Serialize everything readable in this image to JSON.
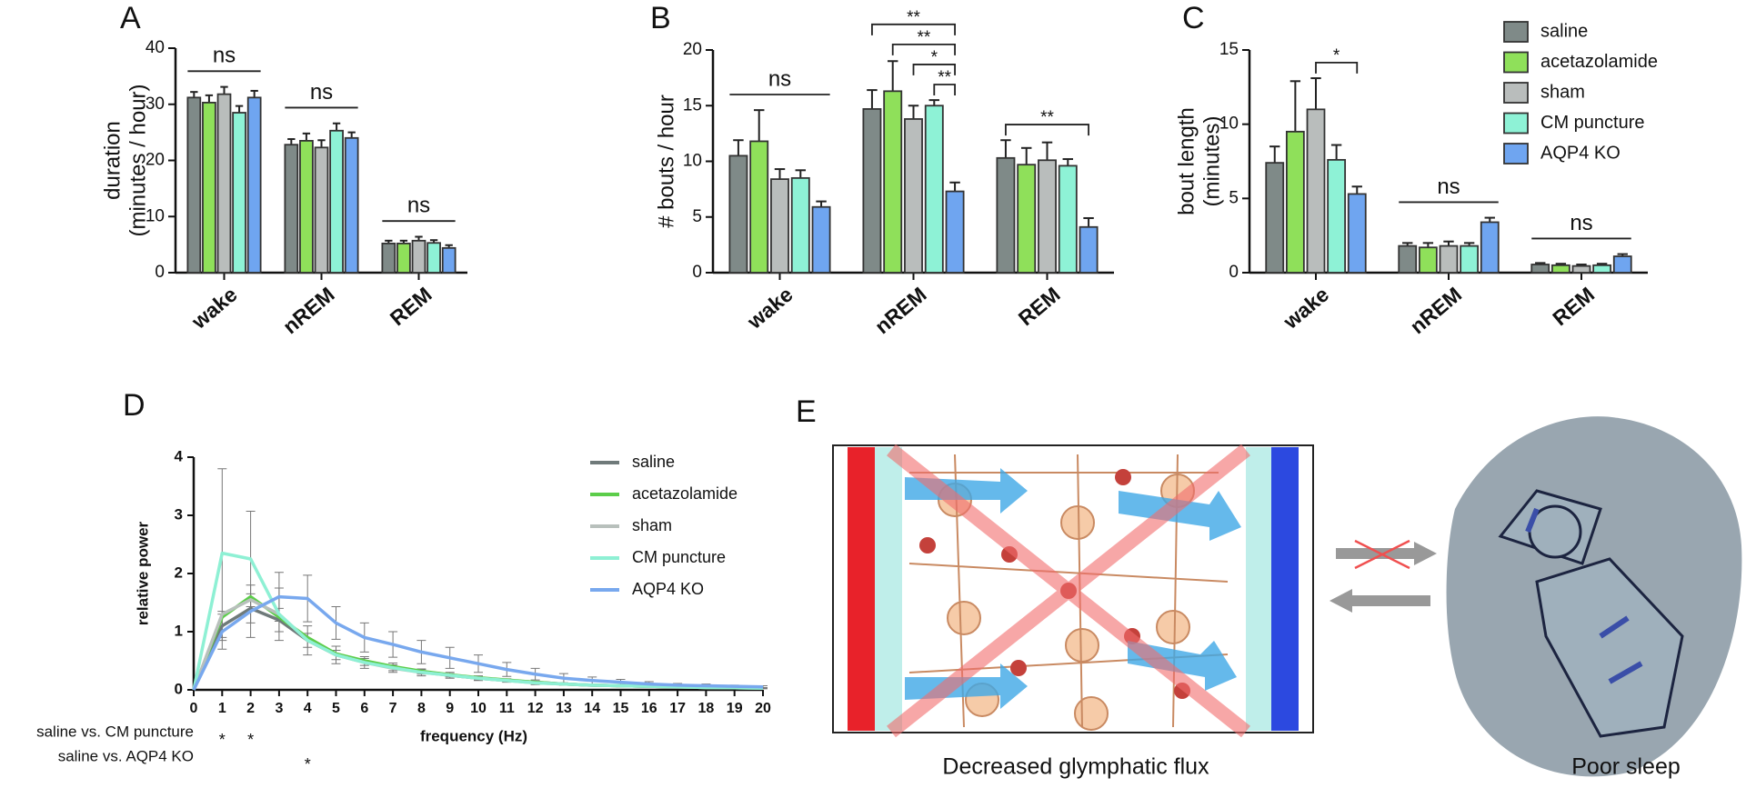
{
  "chart_data": [
    {
      "type": "bar",
      "panel": "A",
      "ylabel": [
        "duration",
        "(minutes / hour)"
      ],
      "categories": [
        "wake",
        "nREM",
        "REM"
      ],
      "ylim": [
        0,
        40
      ],
      "yticks": [
        0,
        10,
        20,
        30,
        40
      ],
      "series": [
        {
          "name": "saline",
          "color": "#7f8a88",
          "values": [
            31.2,
            22.8,
            5.2
          ],
          "errors": [
            1.0,
            1.0,
            0.5
          ]
        },
        {
          "name": "acetazolamide",
          "color": "#8fe05a",
          "values": [
            30.3,
            23.5,
            5.2
          ],
          "errors": [
            1.3,
            1.3,
            0.5
          ]
        },
        {
          "name": "sham",
          "color": "#b9bdbc",
          "values": [
            31.8,
            22.3,
            5.7
          ],
          "errors": [
            1.3,
            1.3,
            0.7
          ]
        },
        {
          "name": "CM puncture",
          "color": "#8ef2d6",
          "values": [
            28.5,
            25.3,
            5.3
          ],
          "errors": [
            1.2,
            1.3,
            0.5
          ]
        },
        {
          "name": "AQP4 KO",
          "color": "#6fa5f0",
          "values": [
            31.2,
            24.0,
            4.4
          ],
          "errors": [
            1.2,
            1.0,
            0.5
          ]
        }
      ],
      "annotations": [
        {
          "text": "ns",
          "group": 0,
          "bars": [
            0,
            4
          ],
          "bracket": false
        },
        {
          "text": "ns",
          "group": 1,
          "bars": [
            0,
            4
          ],
          "bracket": false
        },
        {
          "text": "ns",
          "group": 2,
          "bars": [
            0,
            4
          ],
          "bracket": false
        }
      ]
    },
    {
      "type": "bar",
      "panel": "B",
      "ylabel": [
        "# bouts / hour"
      ],
      "categories": [
        "wake",
        "nREM",
        "REM"
      ],
      "ylim": [
        0,
        20
      ],
      "yticks": [
        0,
        5,
        10,
        15,
        20
      ],
      "series": [
        {
          "name": "saline",
          "color": "#7f8a88",
          "values": [
            10.5,
            14.7,
            10.3
          ],
          "errors": [
            1.4,
            1.7,
            1.6
          ]
        },
        {
          "name": "acetazolamide",
          "color": "#8fe05a",
          "values": [
            11.8,
            16.3,
            9.7
          ],
          "errors": [
            2.8,
            2.7,
            1.5
          ]
        },
        {
          "name": "sham",
          "color": "#b9bdbc",
          "values": [
            8.4,
            13.8,
            10.1
          ],
          "errors": [
            0.9,
            1.2,
            1.6
          ]
        },
        {
          "name": "CM puncture",
          "color": "#8ef2d6",
          "values": [
            8.5,
            15.0,
            9.6
          ],
          "errors": [
            0.7,
            0.5,
            0.6
          ]
        },
        {
          "name": "AQP4 KO",
          "color": "#6fa5f0",
          "values": [
            5.9,
            7.3,
            4.1
          ],
          "errors": [
            0.5,
            0.8,
            0.8
          ]
        }
      ],
      "annotations": [
        {
          "text": "ns",
          "group": 0,
          "bars": [
            0,
            4
          ],
          "bracket": false
        },
        {
          "text": "**",
          "group": 1,
          "bars": [
            3,
            4
          ],
          "bracket": true
        },
        {
          "text": "*",
          "group": 1,
          "bars": [
            2,
            4
          ],
          "bracket": true
        },
        {
          "text": "**",
          "group": 1,
          "bars": [
            1,
            4
          ],
          "bracket": true
        },
        {
          "text": "**",
          "group": 1,
          "bars": [
            0,
            4
          ],
          "bracket": true
        },
        {
          "text": "**",
          "group": 2,
          "bars": [
            0,
            4
          ],
          "bracket": true
        }
      ]
    },
    {
      "type": "bar",
      "panel": "C",
      "ylabel": [
        "bout length",
        "(minutes)"
      ],
      "categories": [
        "wake",
        "nREM",
        "REM"
      ],
      "ylim": [
        0,
        15
      ],
      "yticks": [
        0,
        5,
        10,
        15
      ],
      "legend": "upper right",
      "series": [
        {
          "name": "saline",
          "color": "#7f8a88",
          "values": [
            7.4,
            1.8,
            0.55
          ],
          "errors": [
            1.1,
            0.2,
            0.1
          ]
        },
        {
          "name": "acetazolamide",
          "color": "#8fe05a",
          "values": [
            9.5,
            1.7,
            0.5
          ],
          "errors": [
            3.4,
            0.3,
            0.1
          ]
        },
        {
          "name": "sham",
          "color": "#b9bdbc",
          "values": [
            11.0,
            1.8,
            0.45
          ],
          "errors": [
            2.1,
            0.3,
            0.1
          ]
        },
        {
          "name": "CM puncture",
          "color": "#8ef2d6",
          "values": [
            7.6,
            1.8,
            0.5
          ],
          "errors": [
            1.0,
            0.2,
            0.1
          ]
        },
        {
          "name": "AQP4 KO",
          "color": "#6fa5f0",
          "values": [
            5.3,
            3.4,
            1.1
          ],
          "errors": [
            0.5,
            0.3,
            0.15
          ]
        }
      ],
      "annotations": [
        {
          "text": "*",
          "group": 0,
          "bars": [
            2,
            4
          ],
          "bracket": true
        },
        {
          "text": "ns",
          "group": 1,
          "bars": [
            0,
            4
          ],
          "bracket": false
        },
        {
          "text": "ns",
          "group": 2,
          "bars": [
            0,
            4
          ],
          "bracket": false
        }
      ]
    },
    {
      "type": "line",
      "panel": "D",
      "xlabel": "frequency (Hz)",
      "ylabel": "relative power",
      "x": [
        0,
        1,
        2,
        3,
        4,
        5,
        6,
        7,
        8,
        9,
        10,
        11,
        12,
        13,
        14,
        15,
        16,
        17,
        18,
        19,
        20
      ],
      "xlim": [
        0,
        20
      ],
      "xticks": [
        0,
        1,
        2,
        3,
        4,
        5,
        6,
        7,
        8,
        9,
        10,
        11,
        12,
        13,
        14,
        15,
        16,
        17,
        18,
        19,
        20
      ],
      "ylim": [
        0,
        4
      ],
      "yticks": [
        0,
        1,
        2,
        3,
        4
      ],
      "legend": "upper right",
      "series": [
        {
          "name": "saline",
          "color": "#6f7a7a",
          "values": [
            0,
            1.1,
            1.4,
            1.2,
            0.85,
            0.6,
            0.48,
            0.38,
            0.31,
            0.25,
            0.2,
            0.16,
            0.13,
            0.1,
            0.08,
            0.07,
            0.06,
            0.05,
            0.04,
            0.035,
            0.03
          ],
          "errors": [
            0,
            0.25,
            0.25,
            0.2,
            0.12,
            0.08,
            0.06,
            0.05,
            0.04,
            0.03,
            0.03,
            0.02,
            0.02,
            0.02,
            0.01,
            0.01,
            0.01,
            0.01,
            0.01,
            0.01,
            0.01
          ]
        },
        {
          "name": "acetazolamide",
          "color": "#5ccd4a",
          "values": [
            0,
            1.25,
            1.6,
            1.25,
            0.9,
            0.62,
            0.5,
            0.4,
            0.32,
            0.26,
            0.21,
            0.17,
            0.13,
            0.1,
            0.08,
            0.07,
            0.06,
            0.05,
            0.04,
            0.035,
            0.03
          ]
        },
        {
          "name": "sham",
          "color": "#b8c0bc",
          "values": [
            0,
            1.3,
            1.55,
            1.3,
            0.85,
            0.6,
            0.47,
            0.37,
            0.3,
            0.25,
            0.2,
            0.16,
            0.12,
            0.1,
            0.08,
            0.07,
            0.06,
            0.05,
            0.04,
            0.035,
            0.03
          ]
        },
        {
          "name": "CM puncture",
          "color": "#8ef0d4",
          "values": [
            0,
            2.35,
            2.25,
            1.3,
            0.85,
            0.6,
            0.47,
            0.38,
            0.3,
            0.25,
            0.2,
            0.16,
            0.12,
            0.1,
            0.08,
            0.07,
            0.06,
            0.05,
            0.04,
            0.035,
            0.03
          ],
          "errors": [
            0,
            1.45,
            0.82,
            0.45,
            0.25,
            0.15,
            0.1,
            0.08,
            0.06,
            0.05,
            0.04,
            0.03,
            0.03,
            0.02,
            0.02,
            0.02,
            0.01,
            0.01,
            0.01,
            0.01,
            0.01
          ]
        },
        {
          "name": "AQP4 KO",
          "color": "#78a8ee",
          "values": [
            0,
            1.0,
            1.35,
            1.6,
            1.57,
            1.15,
            0.9,
            0.78,
            0.65,
            0.55,
            0.45,
            0.35,
            0.27,
            0.2,
            0.16,
            0.13,
            0.1,
            0.08,
            0.07,
            0.06,
            0.05
          ],
          "errors": [
            0,
            0.3,
            0.45,
            0.42,
            0.4,
            0.28,
            0.25,
            0.22,
            0.2,
            0.18,
            0.15,
            0.12,
            0.1,
            0.08,
            0.06,
            0.05,
            0.04,
            0.03,
            0.03,
            0.02,
            0.02
          ]
        }
      ],
      "comparisons": [
        {
          "label": "saline vs. CM puncture",
          "x": [
            1,
            2
          ],
          "marks": [
            "*",
            "*"
          ]
        },
        {
          "label": "saline vs. AQP4 KO",
          "x": [
            4
          ],
          "marks": [
            "*"
          ]
        }
      ]
    }
  ],
  "diagram": {
    "panel": "E",
    "captions": [
      "Decreased glymphatic flux",
      "Poor sleep"
    ]
  }
}
